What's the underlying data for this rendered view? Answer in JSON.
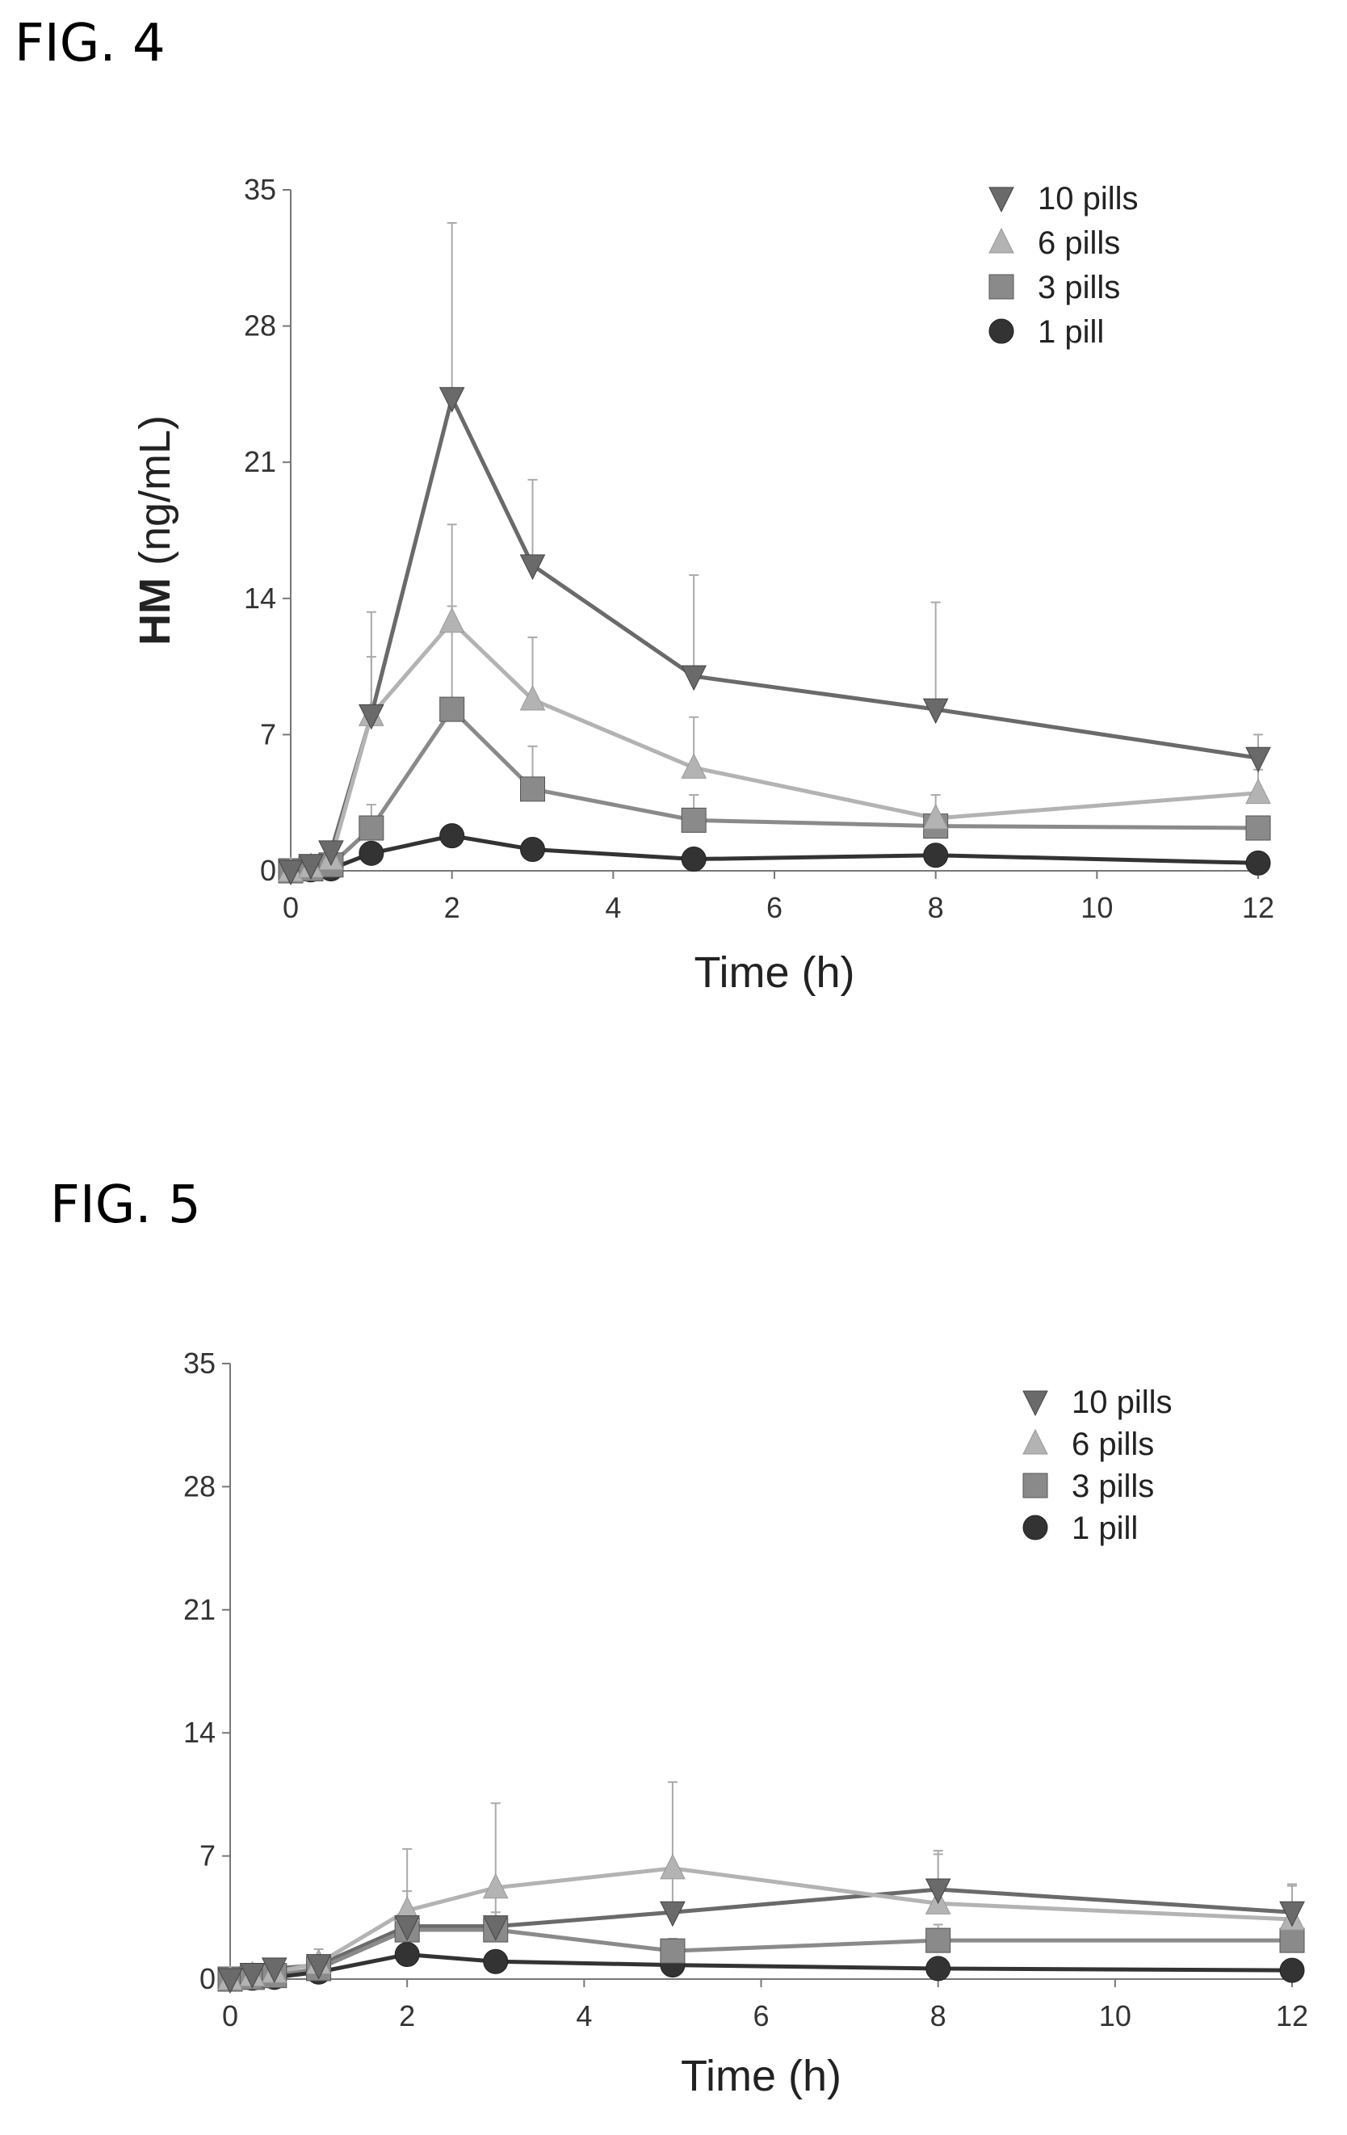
{
  "figures": [
    {
      "label": "FIG. 4"
    },
    {
      "label": "FIG. 5"
    }
  ],
  "chart_data": [
    {
      "type": "line",
      "xlabel": "Time (h)",
      "ylabel_bold": "HM",
      "ylabel_rest": " (ng/mL)",
      "xlim": [
        0,
        12
      ],
      "ylim": [
        0,
        35
      ],
      "xticks": [
        0,
        2,
        4,
        6,
        8,
        10,
        12
      ],
      "yticks": [
        0,
        7,
        14,
        21,
        28,
        35
      ],
      "legend_position": "top-right",
      "x": [
        0,
        0.25,
        0.5,
        1,
        2,
        3,
        5,
        8,
        12
      ],
      "series": [
        {
          "name": "10 pills",
          "marker": "triangle-down",
          "color": "#6a6a6a",
          "values": [
            0,
            0.3,
            1.0,
            8.0,
            24.3,
            15.7,
            10.0,
            8.3,
            5.8
          ],
          "errors": [
            0,
            0.2,
            0.5,
            5.3,
            9.0,
            4.4,
            5.2,
            5.5,
            1.2
          ]
        },
        {
          "name": "6 pills",
          "marker": "triangle-up",
          "color": "#b3b3b3",
          "values": [
            0,
            0.2,
            0.6,
            8.0,
            12.8,
            8.8,
            5.3,
            2.7,
            4.0
          ],
          "errors": [
            0,
            0.1,
            0.3,
            3.0,
            5.0,
            3.2,
            2.6,
            1.2,
            1.2
          ]
        },
        {
          "name": "3 pills",
          "marker": "square",
          "color": "#8a8a8a",
          "values": [
            0,
            0.1,
            0.3,
            2.2,
            8.3,
            4.2,
            2.6,
            2.3,
            2.2
          ],
          "errors": [
            0,
            0.1,
            0.2,
            1.2,
            5.3,
            2.2,
            1.3,
            0.6,
            0.5
          ]
        },
        {
          "name": "1 pill",
          "marker": "circle",
          "color": "#333333",
          "values": [
            0,
            0.05,
            0.1,
            0.9,
            1.8,
            1.1,
            0.6,
            0.8,
            0.4
          ],
          "errors": [
            0,
            0.05,
            0.05,
            0.3,
            0.4,
            0.3,
            0.2,
            0.2,
            0.2
          ]
        }
      ]
    },
    {
      "type": "line",
      "xlabel": "Time (h)",
      "xlim": [
        0,
        12
      ],
      "ylim": [
        0,
        35
      ],
      "xticks": [
        0,
        2,
        4,
        6,
        8,
        10,
        12
      ],
      "yticks": [
        0,
        7,
        14,
        21,
        28,
        35
      ],
      "legend_position": "top-right",
      "x": [
        0,
        0.25,
        0.5,
        1,
        2,
        3,
        5,
        8,
        12
      ],
      "series": [
        {
          "name": "10 pills",
          "marker": "triangle-down",
          "color": "#6a6a6a",
          "values": [
            0,
            0.3,
            0.6,
            0.8,
            3.0,
            3.0,
            3.8,
            5.1,
            3.8
          ],
          "errors": [
            0,
            0.2,
            0.3,
            0.4,
            2.0,
            1.8,
            2.2,
            2.2,
            1.6
          ]
        },
        {
          "name": "6 pills",
          "marker": "triangle-up",
          "color": "#b3b3b3",
          "values": [
            0,
            0.2,
            0.4,
            0.9,
            3.9,
            5.2,
            6.3,
            4.3,
            3.4
          ],
          "errors": [
            0,
            0.1,
            0.2,
            0.8,
            3.5,
            4.8,
            4.9,
            2.8,
            1.9
          ]
        },
        {
          "name": "3 pills",
          "marker": "square",
          "color": "#8a8a8a",
          "values": [
            0,
            0.1,
            0.2,
            0.6,
            2.8,
            2.8,
            1.6,
            2.2,
            2.2
          ],
          "errors": [
            0,
            0.1,
            0.1,
            0.3,
            1.2,
            1.0,
            0.7,
            0.9,
            0.6
          ]
        },
        {
          "name": "1 pill",
          "marker": "circle",
          "color": "#333333",
          "values": [
            0,
            0.05,
            0.1,
            0.4,
            1.4,
            1.0,
            0.8,
            0.6,
            0.5
          ],
          "errors": [
            0,
            0.05,
            0.05,
            0.2,
            0.4,
            0.3,
            0.2,
            0.2,
            0.2
          ]
        }
      ]
    }
  ]
}
